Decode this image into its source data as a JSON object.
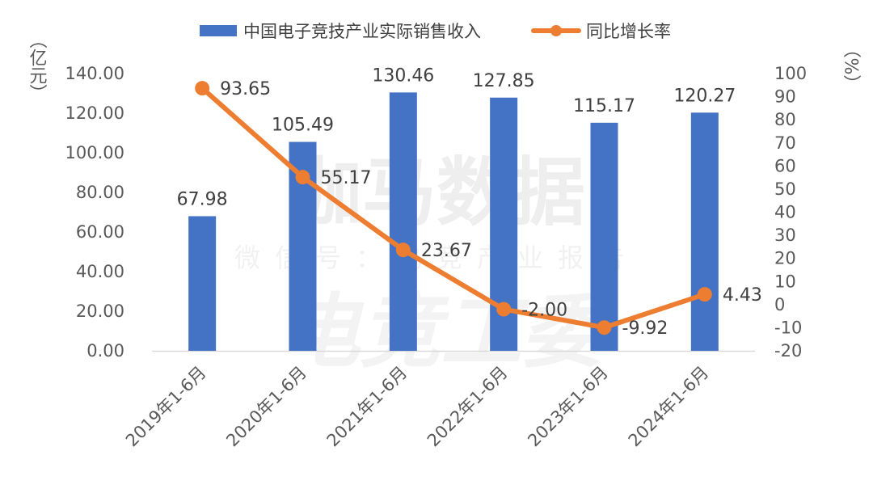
{
  "chart_data": {
    "type": "bar+line",
    "categories": [
      "2019年1-6月",
      "2020年1-6月",
      "2021年1-6月",
      "2022年1-6月",
      "2023年1-6月",
      "2024年1-6月"
    ],
    "series": [
      {
        "name": "中国电子竞技产业实际销售收入",
        "type": "bar",
        "axis": "left",
        "color": "#4472c4",
        "values": [
          67.98,
          105.49,
          130.46,
          127.85,
          115.17,
          120.27
        ],
        "labels": [
          "67.98",
          "105.49",
          "130.46",
          "127.85",
          "115.17",
          "120.27"
        ]
      },
      {
        "name": "同比增长率",
        "type": "line",
        "axis": "right",
        "color": "#ed7d31",
        "values": [
          93.65,
          55.17,
          23.67,
          -2.0,
          -9.92,
          4.43
        ],
        "labels": [
          "93.65",
          "55.17",
          "23.67",
          "-2.00",
          "-9.92",
          "4.43"
        ]
      }
    ],
    "left_axis": {
      "unit": "（亿元）",
      "ylim": [
        0,
        140
      ],
      "ticks": [
        0,
        20,
        40,
        60,
        80,
        100,
        120,
        140
      ],
      "tick_labels": [
        "0.00",
        "20.00",
        "40.00",
        "60.00",
        "80.00",
        "100.00",
        "120.00",
        "140.00"
      ]
    },
    "right_axis": {
      "unit": "（%）",
      "ylim": [
        -20,
        100
      ],
      "ticks": [
        -20,
        -10,
        0,
        10,
        20,
        30,
        40,
        50,
        60,
        70,
        80,
        90,
        100
      ],
      "tick_labels": [
        "-20",
        "-10",
        "0",
        "10",
        "20",
        "30",
        "40",
        "50",
        "60",
        "70",
        "80",
        "90",
        "100"
      ]
    },
    "legend_position": "top",
    "grid": false
  },
  "watermark": {
    "line1": "伽马数据",
    "line2": "微信号：电竞产业报告",
    "line3": "电竞工委"
  }
}
